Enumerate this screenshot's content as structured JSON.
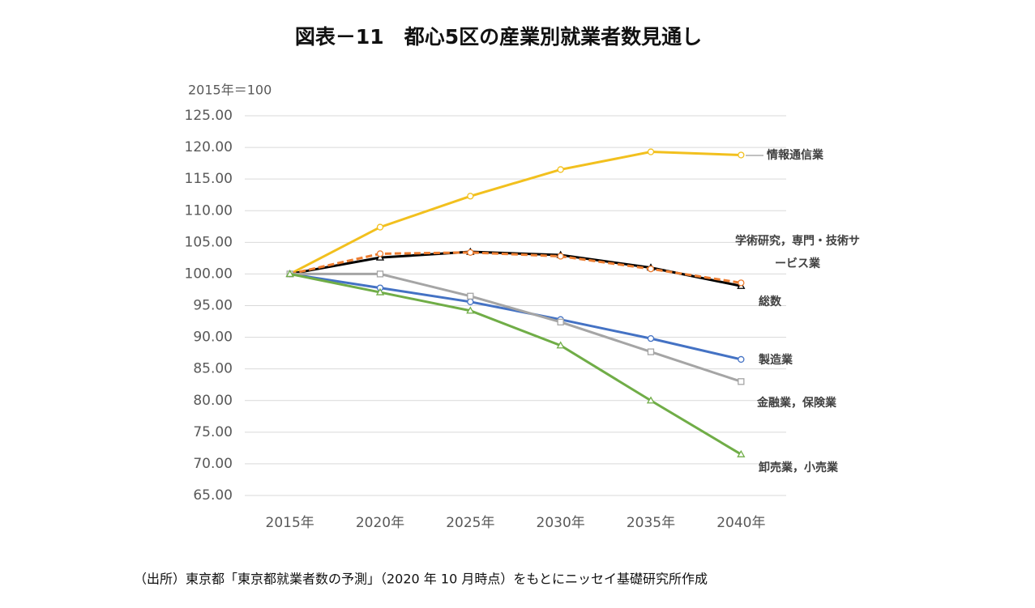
{
  "chart_data": {
    "type": "line",
    "title": "図表－11　都心5区の産業別就業者数見通し",
    "y_label": "2015年＝100",
    "source": "（出所）東京都「東京都就業者数の予測」（2020 年 10 月時点）をもとにニッセイ基礎研究所作成",
    "categories": [
      "2015年",
      "2020年",
      "2025年",
      "2030年",
      "2035年",
      "2040年"
    ],
    "ylim": [
      65,
      125
    ],
    "yticks": [
      {
        "value": 65,
        "label": "65.00"
      },
      {
        "value": 70,
        "label": "70.00"
      },
      {
        "value": 75,
        "label": "75.00"
      },
      {
        "value": 80,
        "label": "80.00"
      },
      {
        "value": 85,
        "label": "85.00"
      },
      {
        "value": 90,
        "label": "90.00"
      },
      {
        "value": 95,
        "label": "95.00"
      },
      {
        "value": 100,
        "label": "100.00"
      },
      {
        "value": 105,
        "label": "105.00"
      },
      {
        "value": 110,
        "label": "110.00"
      },
      {
        "value": 115,
        "label": "115.00"
      },
      {
        "value": 120,
        "label": "120.00"
      },
      {
        "value": 125,
        "label": "125.00"
      }
    ],
    "grid": true,
    "series": [
      {
        "name": "情報通信業",
        "color": "#f2c01e",
        "marker": "circle",
        "values": [
          100,
          107.4,
          112.3,
          116.5,
          119.3,
          118.8
        ]
      },
      {
        "name": "総数",
        "color": "#000000",
        "marker": "triangle",
        "values": [
          100,
          102.6,
          103.5,
          103.0,
          101.0,
          98.1
        ]
      },
      {
        "name": "学術研究，専門・技術サービス業",
        "color": "#ed7d31",
        "marker": "circle",
        "dashed": true,
        "values": [
          100,
          103.2,
          103.4,
          102.8,
          100.8,
          98.6
        ]
      },
      {
        "name": "製造業",
        "color": "#4472c4",
        "marker": "circle",
        "values": [
          100,
          97.8,
          95.6,
          92.8,
          89.8,
          86.5
        ]
      },
      {
        "name": "金融業，保険業",
        "color": "#a5a5a5",
        "marker": "square",
        "values": [
          100,
          100.0,
          96.5,
          92.4,
          87.7,
          83.0
        ]
      },
      {
        "name": "卸売業，小売業",
        "color": "#70ad47",
        "marker": "triangle",
        "values": [
          100,
          97.1,
          94.2,
          88.7,
          80.0,
          71.5
        ]
      }
    ]
  }
}
